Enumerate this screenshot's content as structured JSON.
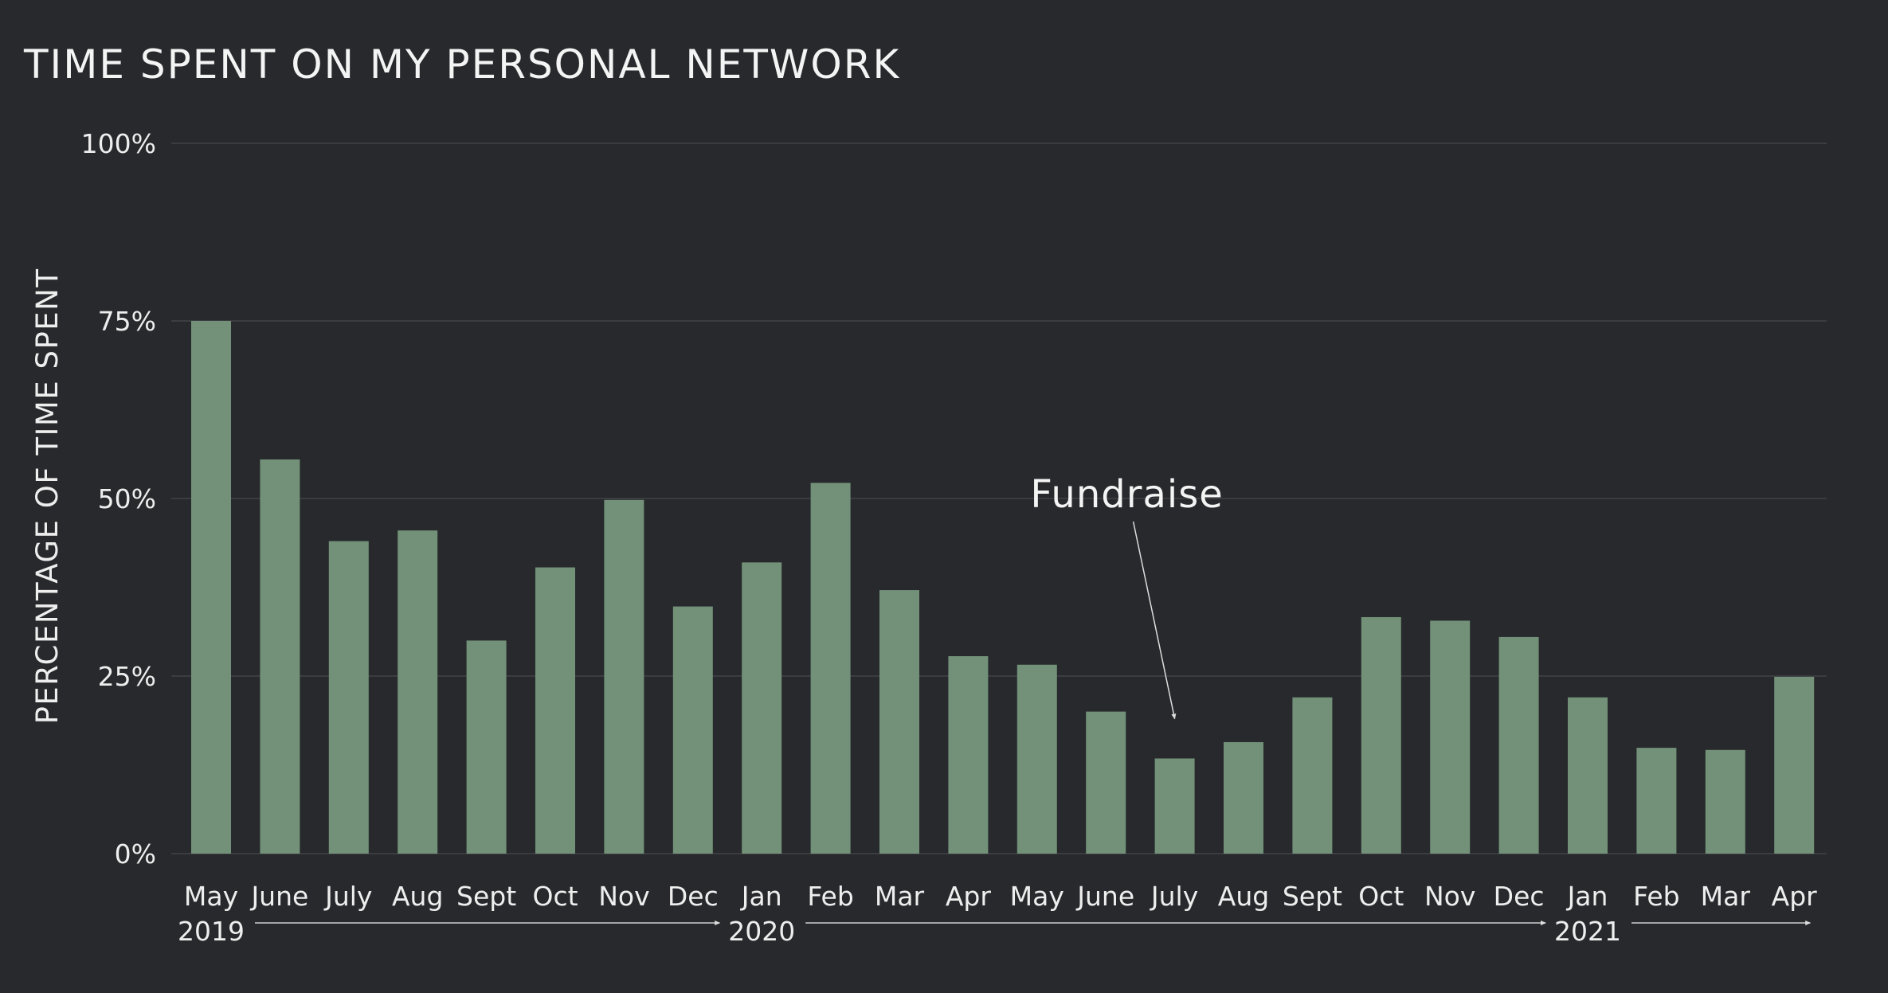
{
  "chart_data": {
    "type": "bar",
    "title": "TIME SPENT ON MY PERSONAL NETWORK",
    "xlabel": "",
    "ylabel": "PERCENTAGE OF TIME SPENT",
    "ylim": [
      0,
      100
    ],
    "yticks": [
      0,
      25,
      50,
      75,
      100
    ],
    "ytick_labels": [
      "0%",
      "25%",
      "50%",
      "75%",
      "100%"
    ],
    "grid": true,
    "bar_color": "#729178",
    "background": "#27292c",
    "categories": [
      "May",
      "June",
      "July",
      "Aug",
      "Sept",
      "Oct",
      "Nov",
      "Dec",
      "Jan",
      "Feb",
      "Mar",
      "Apr",
      "May",
      "June",
      "July",
      "Aug",
      "Sept",
      "Oct",
      "Nov",
      "Dec",
      "Jan",
      "Feb",
      "Mar",
      "Apr"
    ],
    "values": [
      75,
      55.5,
      44,
      45.5,
      30,
      40.3,
      49.8,
      34.8,
      41,
      52.2,
      37.1,
      27.8,
      26.6,
      20,
      13.4,
      15.7,
      22,
      33.3,
      32.8,
      30.5,
      22,
      14.9,
      14.6,
      24.9
    ],
    "years": [
      {
        "label": "2019",
        "start_index": 0,
        "end_index": 7
      },
      {
        "label": "2020",
        "start_index": 8,
        "end_index": 19
      },
      {
        "label": "2021",
        "start_index": 20,
        "end_index": 23
      }
    ],
    "annotations": [
      {
        "text": "Fundraise",
        "target_index": 14
      }
    ]
  }
}
